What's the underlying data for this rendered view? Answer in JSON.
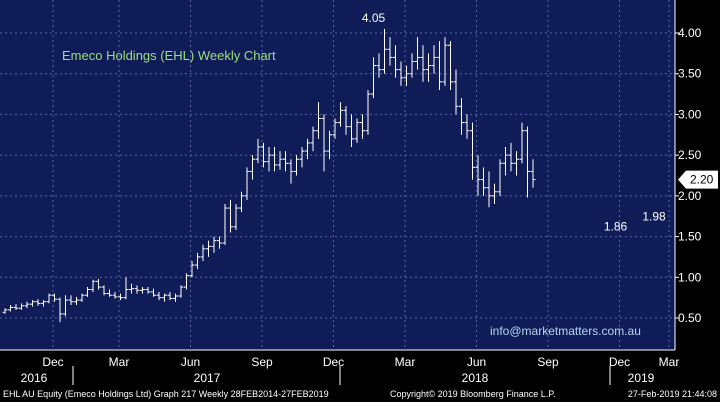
{
  "chart_data": {
    "type": "ohlc-bar",
    "title": "Emeco Holdings (EHL) Weekly Chart",
    "source_link": "info@marketmatters.com.au",
    "ylim": [
      0.25,
      4.25
    ],
    "y_ticks": [
      "0.50",
      "1.00",
      "1.50",
      "2.00",
      "2.50",
      "3.00",
      "3.50",
      "4.00"
    ],
    "y_tick_values": [
      0.5,
      1.0,
      1.5,
      2.0,
      2.5,
      3.0,
      3.5,
      4.0
    ],
    "month_ticks": [
      "Dec",
      "Mar",
      "Jun",
      "Sep",
      "Dec",
      "Mar",
      "Jun",
      "Sep",
      "Dec",
      "Mar"
    ],
    "years": [
      "2016",
      "2017",
      "2018",
      "2019"
    ],
    "last_price": 2.2,
    "last_price_label": "2.20",
    "annotations": [
      {
        "label": "4.05",
        "week": 67,
        "value": 4.05
      },
      {
        "label": "1.86",
        "week": 111,
        "value": 1.86
      },
      {
        "label": "1.98",
        "week": 118,
        "value": 1.98
      }
    ],
    "series": [
      {
        "name": "EHL AU Equity",
        "values": [
          [
            0.57,
            0.62,
            0.55,
            0.6
          ],
          [
            0.6,
            0.66,
            0.58,
            0.63
          ],
          [
            0.63,
            0.67,
            0.6,
            0.62
          ],
          [
            0.62,
            0.68,
            0.6,
            0.65
          ],
          [
            0.65,
            0.7,
            0.62,
            0.67
          ],
          [
            0.67,
            0.72,
            0.64,
            0.7
          ],
          [
            0.7,
            0.73,
            0.65,
            0.68
          ],
          [
            0.68,
            0.72,
            0.64,
            0.7
          ],
          [
            0.7,
            0.8,
            0.68,
            0.78
          ],
          [
            0.78,
            0.8,
            0.7,
            0.73
          ],
          [
            0.73,
            0.75,
            0.45,
            0.55
          ],
          [
            0.55,
            0.78,
            0.52,
            0.72
          ],
          [
            0.72,
            0.78,
            0.66,
            0.7
          ],
          [
            0.7,
            0.76,
            0.66,
            0.72
          ],
          [
            0.72,
            0.8,
            0.7,
            0.78
          ],
          [
            0.78,
            0.88,
            0.76,
            0.85
          ],
          [
            0.85,
            0.97,
            0.82,
            0.95
          ],
          [
            0.95,
            0.98,
            0.85,
            0.88
          ],
          [
            0.88,
            0.9,
            0.78,
            0.8
          ],
          [
            0.8,
            0.85,
            0.76,
            0.78
          ],
          [
            0.78,
            0.82,
            0.74,
            0.76
          ],
          [
            0.76,
            0.8,
            0.72,
            0.75
          ],
          [
            0.75,
            1.0,
            0.73,
            0.85
          ],
          [
            0.85,
            0.92,
            0.8,
            0.86
          ],
          [
            0.86,
            0.9,
            0.8,
            0.84
          ],
          [
            0.84,
            0.88,
            0.8,
            0.85
          ],
          [
            0.85,
            0.88,
            0.8,
            0.82
          ],
          [
            0.82,
            0.86,
            0.76,
            0.78
          ],
          [
            0.78,
            0.82,
            0.72,
            0.75
          ],
          [
            0.75,
            0.8,
            0.7,
            0.78
          ],
          [
            0.78,
            0.82,
            0.72,
            0.74
          ],
          [
            0.74,
            0.8,
            0.7,
            0.77
          ],
          [
            0.77,
            0.9,
            0.75,
            0.88
          ],
          [
            0.88,
            1.05,
            0.85,
            1.02
          ],
          [
            1.02,
            1.2,
            1.0,
            1.15
          ],
          [
            1.15,
            1.3,
            1.1,
            1.25
          ],
          [
            1.25,
            1.4,
            1.2,
            1.35
          ],
          [
            1.35,
            1.45,
            1.25,
            1.38
          ],
          [
            1.38,
            1.5,
            1.3,
            1.45
          ],
          [
            1.45,
            1.5,
            1.35,
            1.42
          ],
          [
            1.42,
            1.9,
            1.4,
            1.85
          ],
          [
            1.85,
            1.95,
            1.55,
            1.62
          ],
          [
            1.62,
            1.9,
            1.58,
            1.85
          ],
          [
            1.85,
            2.05,
            1.8,
            2.0
          ],
          [
            2.0,
            2.35,
            1.95,
            2.3
          ],
          [
            2.3,
            2.5,
            2.2,
            2.45
          ],
          [
            2.45,
            2.7,
            2.4,
            2.6
          ],
          [
            2.6,
            2.65,
            2.35,
            2.42
          ],
          [
            2.42,
            2.6,
            2.3,
            2.5
          ],
          [
            2.5,
            2.6,
            2.3,
            2.38
          ],
          [
            2.38,
            2.55,
            2.32,
            2.45
          ],
          [
            2.45,
            2.55,
            2.3,
            2.4
          ],
          [
            2.4,
            2.45,
            2.15,
            2.3
          ],
          [
            2.3,
            2.5,
            2.25,
            2.45
          ],
          [
            2.45,
            2.6,
            2.35,
            2.55
          ],
          [
            2.55,
            2.7,
            2.45,
            2.65
          ],
          [
            2.65,
            2.85,
            2.55,
            2.8
          ],
          [
            2.8,
            3.15,
            2.7,
            2.95
          ],
          [
            2.95,
            3.0,
            2.3,
            2.55
          ],
          [
            2.55,
            2.8,
            2.45,
            2.75
          ],
          [
            2.75,
            2.95,
            2.7,
            2.9
          ],
          [
            2.9,
            3.15,
            2.85,
            3.05
          ],
          [
            3.05,
            3.1,
            2.75,
            2.85
          ],
          [
            2.85,
            3.0,
            2.6,
            2.7
          ],
          [
            2.7,
            2.95,
            2.65,
            2.9
          ],
          [
            2.9,
            3.0,
            2.7,
            2.8
          ],
          [
            2.8,
            3.3,
            2.75,
            3.25
          ],
          [
            3.25,
            3.7,
            3.2,
            3.6
          ],
          [
            3.6,
            3.75,
            3.45,
            3.55
          ],
          [
            3.55,
            4.05,
            3.5,
            3.8
          ],
          [
            3.8,
            3.95,
            3.6,
            3.7
          ],
          [
            3.7,
            3.85,
            3.45,
            3.55
          ],
          [
            3.55,
            3.65,
            3.35,
            3.45
          ],
          [
            3.45,
            3.6,
            3.35,
            3.5
          ],
          [
            3.5,
            3.75,
            3.45,
            3.65
          ],
          [
            3.65,
            3.95,
            3.55,
            3.7
          ],
          [
            3.7,
            3.85,
            3.4,
            3.55
          ],
          [
            3.55,
            3.75,
            3.4,
            3.6
          ],
          [
            3.6,
            3.85,
            3.5,
            3.7
          ],
          [
            3.7,
            3.9,
            3.3,
            3.4
          ],
          [
            3.4,
            3.95,
            3.35,
            3.85
          ],
          [
            3.85,
            3.9,
            3.3,
            3.4
          ],
          [
            3.4,
            3.55,
            3.0,
            3.1
          ],
          [
            3.1,
            3.2,
            2.75,
            2.9
          ],
          [
            2.9,
            3.0,
            2.7,
            2.8
          ],
          [
            2.8,
            2.9,
            2.2,
            2.35
          ],
          [
            2.35,
            2.5,
            2.0,
            2.2
          ],
          [
            2.2,
            2.35,
            2.0,
            2.1
          ],
          [
            2.1,
            2.3,
            1.86,
            2.0
          ],
          [
            2.0,
            2.15,
            1.9,
            2.05
          ],
          [
            2.05,
            2.45,
            2.0,
            2.4
          ],
          [
            2.4,
            2.6,
            2.25,
            2.5
          ],
          [
            2.5,
            2.65,
            2.3,
            2.4
          ],
          [
            2.4,
            2.55,
            2.25,
            2.45
          ],
          [
            2.45,
            2.9,
            2.4,
            2.8
          ],
          [
            2.8,
            2.85,
            1.98,
            2.3
          ],
          [
            2.3,
            2.45,
            2.1,
            2.2
          ]
        ]
      }
    ]
  },
  "footer": {
    "left": "EHL AU Equity (Emeco Holdings Ltd) Graph 217  Weekly 28FEB2014-27FEB2019",
    "center": "Copyright© 2019 Bloomberg Finance L.P.",
    "right": "27-Feb-2019 21:44:08"
  }
}
